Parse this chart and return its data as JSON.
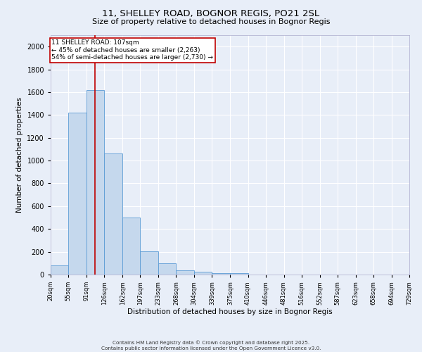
{
  "title": "11, SHELLEY ROAD, BOGNOR REGIS, PO21 2SL",
  "subtitle": "Size of property relative to detached houses in Bognor Regis",
  "xlabel": "Distribution of detached houses by size in Bognor Regis",
  "ylabel": "Number of detached properties",
  "bin_labels": [
    "20sqm",
    "55sqm",
    "91sqm",
    "126sqm",
    "162sqm",
    "197sqm",
    "233sqm",
    "268sqm",
    "304sqm",
    "339sqm",
    "375sqm",
    "410sqm",
    "446sqm",
    "481sqm",
    "516sqm",
    "552sqm",
    "587sqm",
    "623sqm",
    "658sqm",
    "694sqm",
    "729sqm"
  ],
  "bin_edges": [
    20,
    55,
    91,
    126,
    162,
    197,
    233,
    268,
    304,
    339,
    375,
    410,
    446,
    481,
    516,
    552,
    587,
    623,
    658,
    694,
    729
  ],
  "bar_values": [
    80,
    1420,
    1620,
    1060,
    500,
    205,
    100,
    35,
    25,
    15,
    15,
    0,
    0,
    0,
    0,
    0,
    0,
    0,
    0,
    0
  ],
  "bar_color": "#c5d8ed",
  "bar_edge_color": "#5b9bd5",
  "red_line_x": 107,
  "annotation_title": "11 SHELLEY ROAD: 107sqm",
  "annotation_line2": "← 45% of detached houses are smaller (2,263)",
  "annotation_line3": "54% of semi-detached houses are larger (2,730) →",
  "annotation_box_color": "#c00000",
  "ylim": [
    0,
    2100
  ],
  "yticks": [
    0,
    200,
    400,
    600,
    800,
    1000,
    1200,
    1400,
    1600,
    1800,
    2000
  ],
  "background_color": "#e8eef8",
  "grid_color": "#ffffff",
  "footer_line1": "Contains HM Land Registry data © Crown copyright and database right 2025.",
  "footer_line2": "Contains public sector information licensed under the Open Government Licence v3.0."
}
